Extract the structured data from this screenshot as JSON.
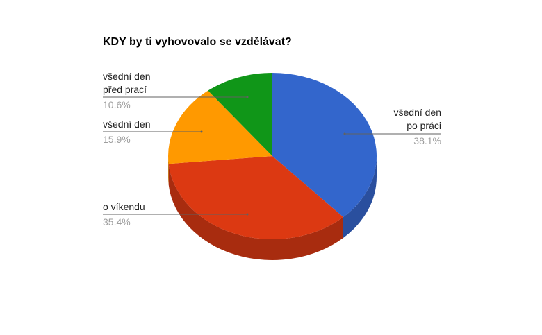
{
  "chart_data": {
    "type": "pie",
    "title": "KDY by ti vyhovovalo se vzdělávat?",
    "three_d": true,
    "slices": [
      {
        "label": [
          "všední den",
          "po práci"
        ],
        "value": 38.1,
        "value_label": "38.1%",
        "color": "#3366cc",
        "side_color": "#2a4f9e"
      },
      {
        "label": [
          "o víkendu"
        ],
        "value": 35.4,
        "value_label": "35.4%",
        "color": "#dc3912",
        "side_color": "#a82c0f"
      },
      {
        "label": [
          "všední den"
        ],
        "value": 15.9,
        "value_label": "15.9%",
        "color": "#ff9900",
        "side_color": "#c47400"
      },
      {
        "label": [
          "všední den",
          "před prací"
        ],
        "value": 10.6,
        "value_label": "10.6%",
        "color": "#109618",
        "side_color": "#0c7012"
      }
    ]
  }
}
